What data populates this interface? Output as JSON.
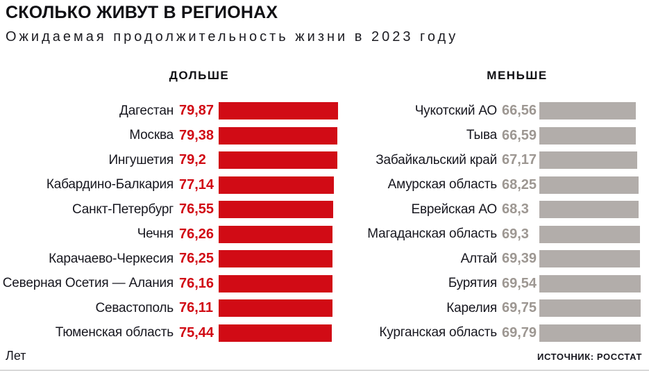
{
  "header": {
    "title": "СКОЛЬКО ЖИВУТ В РЕГИОНАХ",
    "subtitle": "Ожидаемая продолжительность жизни в 2023 году"
  },
  "colors": {
    "bar_red": "#d10b15",
    "bar_gray": "#b2adaa",
    "value_red": "#d10b15",
    "value_gray": "#9d9792",
    "label_dark": "#17171f"
  },
  "chart_data": {
    "type": "bar",
    "orientation": "horizontal",
    "title": "СКОЛЬКО ЖИВУТ В РЕГИОНАХ",
    "subtitle": "Ожидаемая продолжительность жизни в 2023 году",
    "unit": "Лет",
    "source": "ИСТОЧНИК: РОССТАТ",
    "grid": false,
    "groups": [
      {
        "label": "ДОЛЬШЕ",
        "bar_color": "#d10b15",
        "value_color": "#d10b15",
        "regions": [
          "Дагестан",
          "Москва",
          "Ингушетия",
          "Кабардино-Балкария",
          "Санкт-Петербург",
          "Чечня",
          "Карачаево-Черкесия",
          "Северная Осетия — Алания",
          "Севастополь",
          "Тюменская область"
        ],
        "values": [
          79.87,
          79.38,
          79.2,
          77.14,
          76.55,
          76.26,
          76.25,
          76.16,
          76.11,
          75.44
        ],
        "value_labels": [
          "79,87",
          "79,38",
          "79,2",
          "77,14",
          "76,55",
          "76,26",
          "76,25",
          "76,16",
          "76,11",
          "75,44"
        ]
      },
      {
        "label": "МЕНЬШЕ",
        "bar_color": "#b2adaa",
        "value_color": "#9d9792",
        "regions": [
          "Чукотский АО",
          "Тыва",
          "Забайкальский край",
          "Амурская область",
          "Еврейская АО",
          "Магаданская область",
          "Алтай",
          "Бурятия",
          "Карелия",
          "Курганская область"
        ],
        "values": [
          66.56,
          66.59,
          67.17,
          68.25,
          68.3,
          69.3,
          69.39,
          69.54,
          69.75,
          69.79
        ],
        "value_labels": [
          "66,56",
          "66,59",
          "67,17",
          "68,25",
          "68,3",
          "69,3",
          "69,39",
          "69,54",
          "69,75",
          "69,79"
        ]
      }
    ]
  },
  "footer": {
    "unit": "Лет",
    "source": "ИСТОЧНИК: РОССТАТ"
  }
}
